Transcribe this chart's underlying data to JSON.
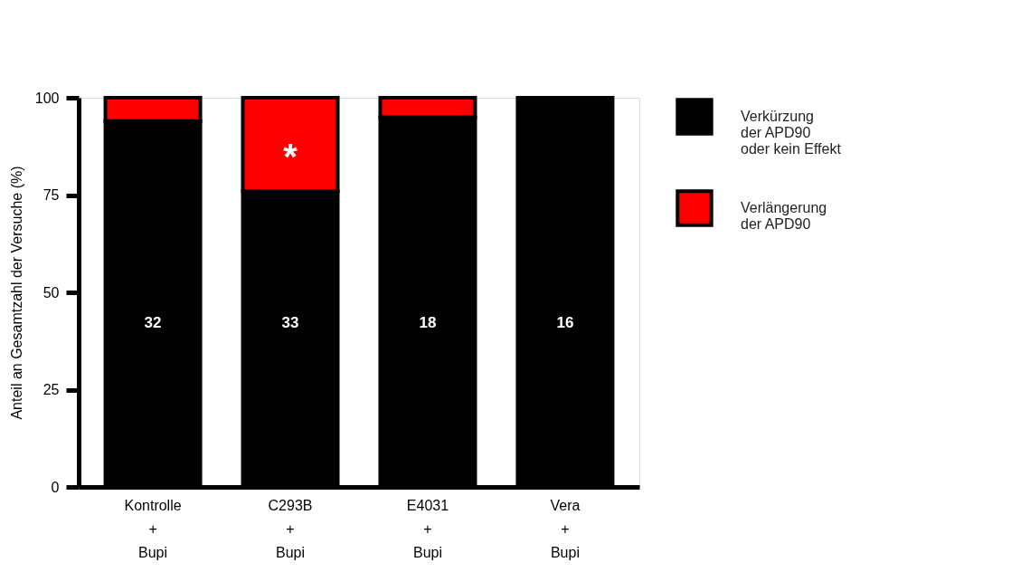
{
  "chart_data": {
    "type": "bar",
    "stacked": true,
    "ylabel": "Anteil an Gesamtzahl der Versuche (%)",
    "categories": [
      "Kontrolle\n+\nBupi",
      "C293B\n+\nBupi",
      "E4031\n+\nBupi",
      "Vera\n+\nBupi"
    ],
    "series": [
      {
        "name": "Verkürzung\nder APD90\noder kein Effekt",
        "color": "#000000",
        "values": [
          94,
          76,
          95,
          100
        ]
      },
      {
        "name": "Verlängerung\nder APD90",
        "color": "#ff0000",
        "values": [
          6,
          24,
          5,
          0
        ]
      }
    ],
    "ylim": [
      0,
      100
    ],
    "yticks": [
      0,
      25,
      50,
      75,
      100
    ],
    "grid": false,
    "legend": "top right",
    "annotations": [
      "32",
      "33",
      "18",
      "16",
      "*"
    ]
  }
}
